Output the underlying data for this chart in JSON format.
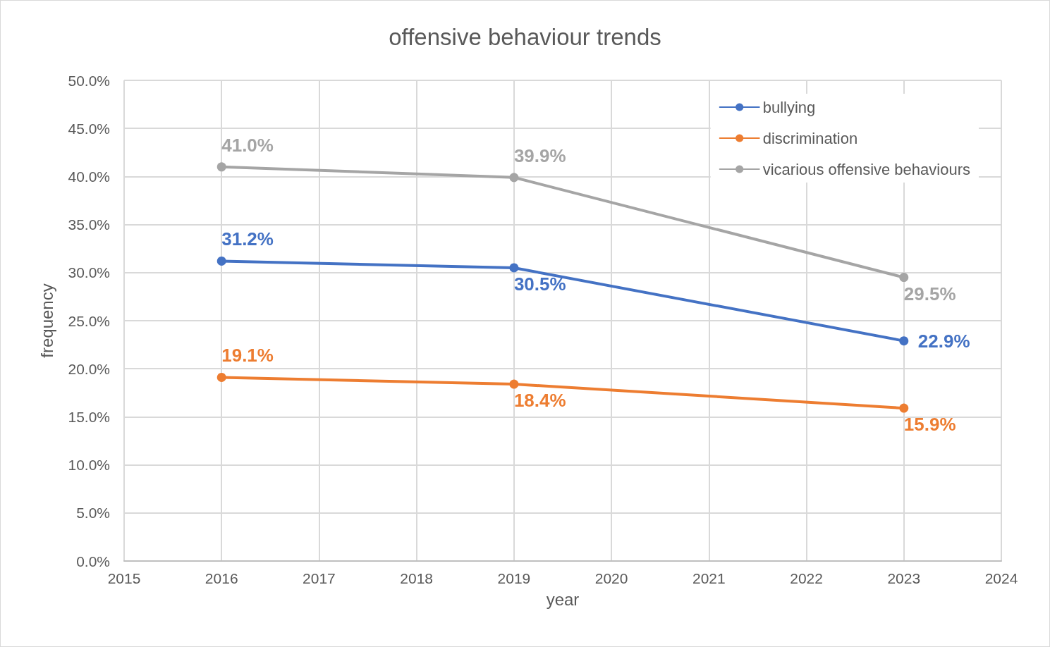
{
  "chart_data": {
    "type": "line",
    "title": "offensive behaviour trends",
    "xlabel": "year",
    "ylabel": "frequency",
    "x": [
      2016,
      2019,
      2023
    ],
    "series": [
      {
        "name": "bullying",
        "color": "#4472c4",
        "values": [
          31.2,
          30.5,
          22.9
        ],
        "value_labels": [
          "31.2%",
          "30.5%",
          "22.9%"
        ]
      },
      {
        "name": "discrimination",
        "color": "#ed7d31",
        "values": [
          19.1,
          18.4,
          15.9
        ],
        "value_labels": [
          "19.1%",
          "18.4%",
          "15.9%"
        ]
      },
      {
        "name": "vicarious offensive behaviours",
        "color": "#a5a5a5",
        "values": [
          41.0,
          39.9,
          29.5
        ],
        "value_labels": [
          "41.0%",
          "39.9%",
          "29.5%"
        ]
      }
    ],
    "xlim": [
      2015,
      2024
    ],
    "xticks": [
      2015,
      2016,
      2017,
      2018,
      2019,
      2020,
      2021,
      2022,
      2023,
      2024
    ],
    "ylim": [
      0,
      50
    ],
    "yticks": [
      {
        "value": 0,
        "label": "0.0%"
      },
      {
        "value": 5,
        "label": "5.0%"
      },
      {
        "value": 10,
        "label": "10.0%"
      },
      {
        "value": 15,
        "label": "15.0%"
      },
      {
        "value": 20,
        "label": "20.0%"
      },
      {
        "value": 25,
        "label": "25.0%"
      },
      {
        "value": 30,
        "label": "30.0%"
      },
      {
        "value": 35,
        "label": "35.0%"
      },
      {
        "value": 40,
        "label": "40.0%"
      },
      {
        "value": 45,
        "label": "45.0%"
      },
      {
        "value": 50,
        "label": "50.0%"
      }
    ],
    "grid": true,
    "legend": "top right",
    "marker": "circle",
    "line_style": "solid"
  }
}
